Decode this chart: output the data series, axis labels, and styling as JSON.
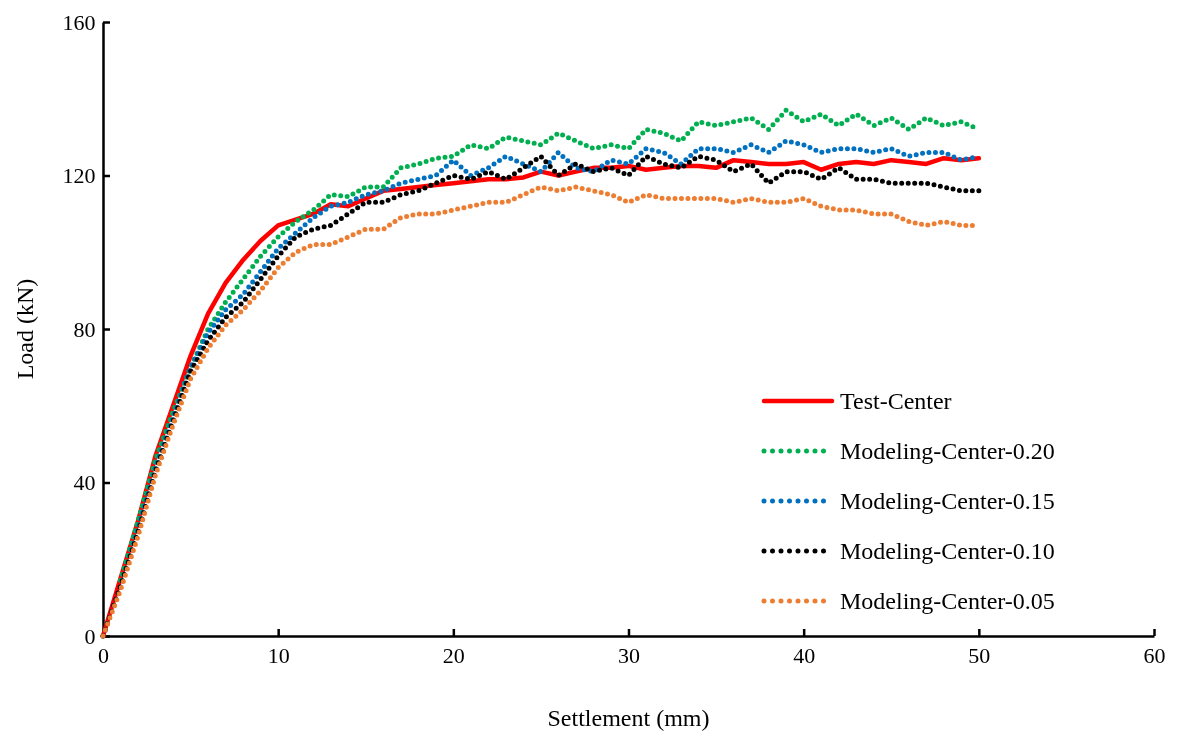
{
  "chart_data": {
    "type": "line",
    "xlabel": "Settlement (mm)",
    "ylabel": "Load (kN)",
    "xlim": [
      0,
      60
    ],
    "xticks": [
      0,
      10,
      20,
      30,
      40,
      50,
      60
    ],
    "ylim": [
      0,
      160
    ],
    "yticks": [
      0,
      40,
      80,
      120,
      160
    ],
    "grid": false,
    "legend": "bottom right",
    "marker": "none",
    "x": [
      0,
      1,
      2,
      3,
      4,
      5,
      6,
      7,
      8,
      9,
      10,
      11,
      12,
      13,
      14,
      15,
      16,
      17,
      18,
      19,
      20,
      21,
      22,
      23,
      24,
      25,
      26,
      27,
      28,
      29,
      30,
      31,
      32,
      33,
      34,
      35,
      36,
      37,
      38,
      39,
      40,
      41,
      42,
      43,
      44,
      45,
      46,
      47,
      48,
      49,
      50
    ],
    "series": [
      {
        "name": "Test-Center",
        "color": "#ff0000",
        "line_style": "solid",
        "values": [
          0,
          15,
          30,
          47,
          60,
          73,
          84,
          92,
          98,
          103,
          107,
          108.5,
          110,
          112.5,
          112,
          114,
          116,
          116.5,
          117,
          117.5,
          118,
          118.5,
          119,
          119,
          119.5,
          121,
          120,
          121,
          122,
          122,
          122.5,
          121.5,
          122,
          122.5,
          122.5,
          122,
          124,
          123.5,
          123,
          123,
          123.5,
          121.5,
          123,
          123.5,
          123,
          124,
          123.5,
          123,
          124.5,
          124,
          124.5
        ]
      },
      {
        "name": "Modeling-Center-0.20",
        "color": "#00b050",
        "line_style": "dotted",
        "values": [
          null,
          14.5,
          30,
          46,
          58.5,
          70,
          80,
          87,
          93,
          99,
          104,
          108,
          111,
          115,
          114.5,
          117,
          117,
          122,
          123,
          124.5,
          125,
          128,
          127,
          130,
          129,
          128,
          131,
          129,
          127,
          128,
          127,
          132,
          131,
          129,
          134,
          133,
          134,
          135,
          132,
          137,
          134,
          136,
          133,
          136,
          133,
          135,
          132,
          135,
          133,
          134,
          132
        ]
      },
      {
        "name": "Modeling-Center-0.15",
        "color": "#0070c0",
        "line_style": "dotted",
        "values": [
          0,
          13,
          28,
          44,
          57,
          70,
          79,
          85,
          89,
          95,
          101,
          105,
          109,
          112,
          113,
          115,
          116,
          118,
          119,
          120,
          124,
          120,
          122,
          125,
          123,
          121,
          126,
          122,
          121,
          124,
          123,
          127,
          126,
          123,
          127,
          127,
          126,
          128,
          126,
          129,
          128,
          126,
          127,
          127,
          126,
          127,
          125,
          126,
          126,
          124,
          125
        ]
      },
      {
        "name": "Modeling-Center-0.10",
        "color": "#000000",
        "line_style": "dotted",
        "values": [
          0,
          13,
          27,
          43,
          56,
          69,
          77,
          83,
          87,
          93,
          99,
          104,
          106,
          107,
          110,
          113,
          113,
          115,
          116,
          118,
          120,
          119,
          121,
          119,
          122,
          125,
          120,
          123,
          121,
          122,
          120,
          125,
          123,
          122,
          125,
          124,
          121,
          123,
          118,
          121,
          121,
          119,
          122,
          119,
          119,
          118,
          118,
          118,
          117,
          116,
          116
        ]
      },
      {
        "name": "Modeling-Center-0.05",
        "color": "#ed7d31",
        "line_style": "dotted",
        "values": [
          0,
          12,
          26,
          42,
          55,
          67,
          75,
          81,
          85,
          90,
          96,
          100,
          102,
          102,
          104,
          106,
          106,
          109,
          110,
          110,
          111,
          112,
          113,
          113,
          115,
          117,
          116,
          117,
          116,
          115,
          113,
          115,
          114,
          114,
          114,
          114,
          113,
          114,
          113,
          113,
          114,
          112,
          111,
          111,
          110,
          110,
          108,
          107,
          108,
          107,
          107
        ]
      }
    ]
  }
}
